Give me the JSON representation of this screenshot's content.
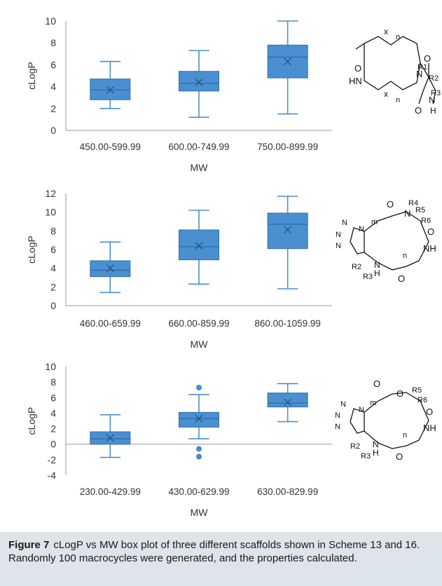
{
  "figure": {
    "caption_label": "Figure 7",
    "caption_text": "cLogP vs MW box plot of three different scaffolds shown in Scheme 13 and 16. Randomly 100 macrocycles were generated, and the properties calculated."
  },
  "colors": {
    "box_fill": "#4a90d0",
    "box_stroke": "#2e6fae",
    "axis": "#9a9a9a",
    "caption_bg": "#dde4ea"
  },
  "chart_data": [
    {
      "type": "box",
      "xlabel": "MW",
      "ylabel": "cLogP",
      "ylim": [
        0,
        10
      ],
      "yticks": [
        "0",
        "2",
        "4",
        "6",
        "8",
        "10"
      ],
      "categories": [
        "450.00-599.99",
        "600.00-749.99",
        "750.00-899.99"
      ],
      "boxes": [
        {
          "min": 2.0,
          "q1": 2.8,
          "median": 3.7,
          "q3": 4.7,
          "max": 6.3,
          "mean": 3.7,
          "outliers": []
        },
        {
          "min": 1.2,
          "q1": 3.6,
          "median": 4.3,
          "q3": 5.4,
          "max": 7.3,
          "mean": 4.4,
          "outliers": []
        },
        {
          "min": 1.5,
          "q1": 4.8,
          "median": 6.7,
          "q3": 7.8,
          "max": 10.0,
          "mean": 6.3,
          "outliers": []
        }
      ],
      "structure_labels": [
        "O",
        "O",
        "HN",
        "N",
        "x",
        "n",
        "x",
        "n",
        "R1",
        "R2",
        "O",
        "N",
        "H",
        "R3"
      ]
    },
    {
      "type": "box",
      "xlabel": "MW",
      "ylabel": "cLogP",
      "ylim": [
        0,
        12
      ],
      "yticks": [
        "0",
        "2",
        "4",
        "6",
        "8",
        "10",
        "12"
      ],
      "categories": [
        "460.00-659.99",
        "660.00-859.99",
        "860.00-1059.99"
      ],
      "boxes": [
        {
          "min": 1.4,
          "q1": 3.1,
          "median": 3.8,
          "q3": 4.8,
          "max": 6.8,
          "mean": 4.0,
          "outliers": []
        },
        {
          "min": 2.3,
          "q1": 4.9,
          "median": 6.3,
          "q3": 8.1,
          "max": 10.2,
          "mean": 6.4,
          "outliers": []
        },
        {
          "min": 1.8,
          "q1": 6.1,
          "median": 8.7,
          "q3": 9.9,
          "max": 11.7,
          "mean": 8.1,
          "outliers": []
        }
      ],
      "structure_labels": [
        "O",
        "R4",
        "N",
        "R5",
        "R6",
        "O",
        "NH",
        "O",
        "H",
        "N",
        "R2",
        "R3",
        "m",
        "n",
        "N",
        "N",
        "N",
        "N"
      ]
    },
    {
      "type": "box",
      "xlabel": "MW",
      "ylabel": "cLogP",
      "ylim": [
        -4,
        10
      ],
      "yticks": [
        "-4",
        "-2",
        "0",
        "2",
        "4",
        "6",
        "8",
        "10"
      ],
      "categories": [
        "230.00-429.99",
        "430.00-629.99",
        "630.00-829.99"
      ],
      "boxes": [
        {
          "min": -1.7,
          "q1": 0.0,
          "median": 0.7,
          "q3": 1.6,
          "max": 3.8,
          "mean": 0.8,
          "outliers": []
        },
        {
          "min": 0.7,
          "q1": 2.2,
          "median": 3.3,
          "q3": 4.1,
          "max": 6.4,
          "mean": 3.3,
          "outliers": [
            7.3,
            -0.6,
            -1.6
          ]
        },
        {
          "min": 2.9,
          "q1": 4.8,
          "median": 5.3,
          "q3": 6.6,
          "max": 7.8,
          "mean": 5.4,
          "outliers": []
        }
      ],
      "structure_labels": [
        "O",
        "O",
        "R5",
        "R6",
        "O",
        "NH",
        "O",
        "H",
        "N",
        "R2",
        "R3",
        "m",
        "n",
        "N",
        "N",
        "N",
        "N"
      ]
    }
  ]
}
